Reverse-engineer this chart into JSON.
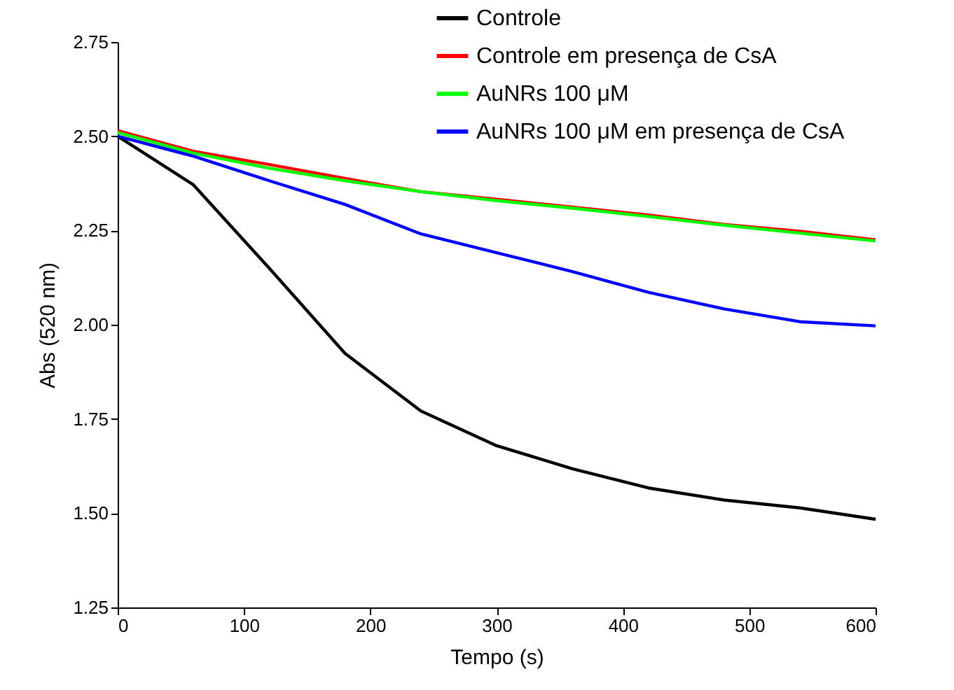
{
  "chart_data": {
    "type": "line",
    "xlabel": "Tempo (s)",
    "ylabel": "Abs (520 nm)",
    "x": [
      0,
      60,
      120,
      180,
      240,
      300,
      360,
      420,
      480,
      540,
      600
    ],
    "series": [
      {
        "name": "Controle",
        "color": "#000000",
        "values": [
          2.5,
          2.371,
          2.15,
          1.924,
          1.771,
          1.679,
          1.618,
          1.567,
          1.535,
          1.514,
          1.484
        ]
      },
      {
        "name": "Controle em presença de CsA",
        "color": "#ff0000",
        "values": [
          2.515,
          2.46,
          2.425,
          2.388,
          2.353,
          2.333,
          2.312,
          2.291,
          2.266,
          2.248,
          2.225
        ]
      },
      {
        "name": "AuNRs 100 μM",
        "color": "#00ff00",
        "values": [
          2.51,
          2.455,
          2.415,
          2.382,
          2.353,
          2.329,
          2.309,
          2.287,
          2.264,
          2.243,
          2.222
        ]
      },
      {
        "name": "AuNRs 100 μM em presença de CsA",
        "color": "#0000ff",
        "values": [
          2.5,
          2.447,
          2.382,
          2.319,
          2.241,
          2.191,
          2.141,
          2.086,
          2.042,
          2.008,
          1.997
        ]
      }
    ],
    "xlim": [
      0,
      600
    ],
    "xticks": [
      0,
      100,
      200,
      300,
      400,
      500,
      600
    ],
    "ylim": [
      1.25,
      2.75
    ],
    "yticks": [
      {
        "value": 1.25,
        "label": "1.25"
      },
      {
        "value": 1.5,
        "label": "1.50"
      },
      {
        "value": 1.75,
        "label": "1.75"
      },
      {
        "value": 2,
        "label": "2.00"
      },
      {
        "value": 2.25,
        "label": "2.25"
      },
      {
        "value": 2.5,
        "label": "2.50"
      },
      {
        "value": 2.75,
        "label": "2.75"
      }
    ],
    "legend": "top right"
  }
}
